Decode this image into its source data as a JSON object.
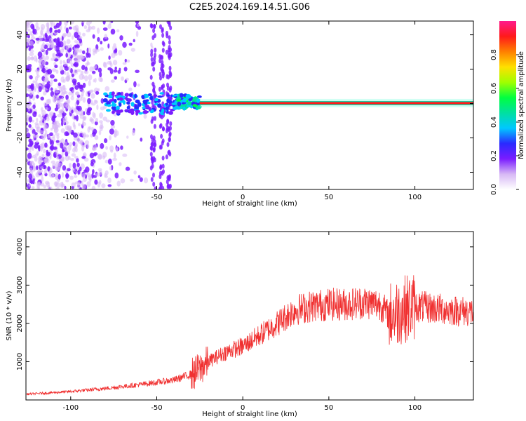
{
  "chart_data": [
    {
      "type": "heatmap",
      "title": "C2E5.2024.169.14.51.G06",
      "xlabel": "Height of straight line (km)",
      "ylabel": "Frequency (Hz)",
      "xlim": [
        -126,
        134
      ],
      "ylim": [
        -50,
        48
      ],
      "x_ticks": [
        -100,
        -50,
        0,
        50,
        100
      ],
      "y_ticks": [
        -40,
        -20,
        0,
        20,
        40
      ],
      "colorbar": {
        "label": "Normalized spectral amplitude",
        "range": [
          0,
          1
        ],
        "ticks": [
          0.0,
          0.2,
          0.4,
          0.6,
          0.8
        ],
        "colors": [
          "#ffffff",
          "#d7b8f5",
          "#7a1cff",
          "#2a2aff",
          "#00c8ff",
          "#00e0a0",
          "#00ff40",
          "#a0ff00",
          "#ffe000",
          "#ff8000",
          "#ff1a1a",
          "#ff1a8c"
        ]
      },
      "features": [
        {
          "x_range": [
            -126,
            -80
          ],
          "freq_band": [
            -50,
            48
          ],
          "amplitude": 0.12
        },
        {
          "x_range": [
            -80,
            -40
          ],
          "freq_band": [
            -6,
            6
          ],
          "amplitude": 0.3
        },
        {
          "x_range": [
            -40,
            -25
          ],
          "freq_band": [
            -3,
            5
          ],
          "amplitude": 0.4
        },
        {
          "x_range": [
            -25,
            134
          ],
          "freq_band": [
            -1,
            1.5
          ],
          "amplitude": 0.9
        }
      ]
    },
    {
      "type": "line",
      "xlabel": "Height of straight line (km)",
      "ylabel": "SNR (10 * v/v)",
      "xlim": [
        -126,
        134
      ],
      "ylim": [
        0,
        4400
      ],
      "x_ticks": [
        -100,
        -50,
        0,
        50,
        100
      ],
      "y_ticks": [
        1000,
        2000,
        3000,
        4000
      ],
      "color": "#f03030",
      "series": [
        {
          "x": [
            -126,
            -100,
            -80,
            -60,
            -40,
            -28,
            -20,
            -10,
            0,
            10,
            20,
            30,
            40,
            50,
            60,
            70,
            80,
            85,
            90,
            95,
            100,
            110,
            120,
            134
          ],
          "values": [
            150,
            220,
            300,
            400,
            520,
            700,
            1000,
            1250,
            1400,
            1700,
            2000,
            2350,
            2450,
            2500,
            2500,
            2550,
            2500,
            2200,
            2300,
            2400,
            2450,
            2400,
            2350,
            2300
          ]
        }
      ]
    }
  ]
}
